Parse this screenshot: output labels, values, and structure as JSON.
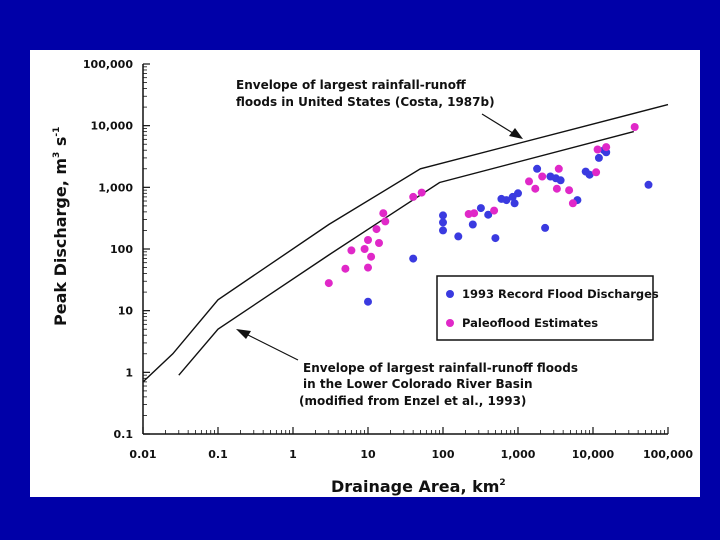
{
  "chart_data": {
    "type": "scatter",
    "x_scale": "log",
    "y_scale": "log",
    "xlim": [
      0.01,
      100000
    ],
    "ylim": [
      0.1,
      100000
    ],
    "xlabel": "Drainage Area, km",
    "xlabel_superscript": "2",
    "ylabel": "Peak Discharge, m",
    "ylabel_superscript_1": "3",
    "ylabel_unit_s": " s",
    "ylabel_superscript_2": "-1",
    "x_ticks": [
      {
        "value": 0.01,
        "label": "0.01"
      },
      {
        "value": 0.1,
        "label": "0.1"
      },
      {
        "value": 1,
        "label": "1"
      },
      {
        "value": 10,
        "label": "10"
      },
      {
        "value": 100,
        "label": "100"
      },
      {
        "value": 1000,
        "label": "1,000"
      },
      {
        "value": 10000,
        "label": "10,000"
      },
      {
        "value": 100000,
        "label": "100,000"
      }
    ],
    "y_ticks": [
      {
        "value": 0.1,
        "label": "0.1"
      },
      {
        "value": 1,
        "label": "1"
      },
      {
        "value": 10,
        "label": "10"
      },
      {
        "value": 100,
        "label": "100"
      },
      {
        "value": 1000,
        "label": "1,000"
      },
      {
        "value": 10000,
        "label": "10,000"
      },
      {
        "value": 100000,
        "label": "100,000"
      }
    ],
    "grid": false,
    "legend_position": "bottom-right",
    "series": [
      {
        "name": "1993 Record Flood Discharges",
        "color": "#3a3ae0",
        "marker": "circle",
        "points": [
          [
            10,
            14
          ],
          [
            40,
            70
          ],
          [
            100,
            350
          ],
          [
            100,
            270
          ],
          [
            100,
            200
          ],
          [
            160,
            160
          ],
          [
            250,
            250
          ],
          [
            320,
            460
          ],
          [
            400,
            360
          ],
          [
            500,
            150
          ],
          [
            600,
            650
          ],
          [
            700,
            620
          ],
          [
            850,
            700
          ],
          [
            900,
            550
          ],
          [
            1000,
            800
          ],
          [
            1800,
            2000
          ],
          [
            2300,
            220
          ],
          [
            2700,
            1500
          ],
          [
            3200,
            1400
          ],
          [
            3700,
            1300
          ],
          [
            6200,
            620
          ],
          [
            8000,
            1800
          ],
          [
            9000,
            1600
          ],
          [
            12000,
            3000
          ],
          [
            14000,
            4000
          ],
          [
            15000,
            3700
          ],
          [
            55000,
            1100
          ]
        ]
      },
      {
        "name": "Paleoflood Estimates",
        "color": "#e028c8",
        "marker": "circle",
        "points": [
          [
            3,
            28
          ],
          [
            5,
            48
          ],
          [
            6,
            95
          ],
          [
            9,
            100
          ],
          [
            10,
            50
          ],
          [
            10,
            140
          ],
          [
            11,
            75
          ],
          [
            13,
            210
          ],
          [
            14,
            125
          ],
          [
            16,
            380
          ],
          [
            17,
            280
          ],
          [
            40,
            700
          ],
          [
            52,
            820
          ],
          [
            220,
            370
          ],
          [
            260,
            380
          ],
          [
            480,
            420
          ],
          [
            1400,
            1250
          ],
          [
            1700,
            950
          ],
          [
            2100,
            1500
          ],
          [
            3300,
            950
          ],
          [
            3500,
            2000
          ],
          [
            4800,
            900
          ],
          [
            5400,
            550
          ],
          [
            11000,
            1750
          ],
          [
            11500,
            4100
          ],
          [
            15000,
            4500
          ],
          [
            36000,
            9500
          ]
        ]
      }
    ],
    "envelopes": [
      {
        "name": "us_envelope",
        "points": [
          [
            0.01,
            0.7
          ],
          [
            0.025,
            2
          ],
          [
            0.1,
            15
          ],
          [
            3,
            250
          ],
          [
            50,
            2000
          ],
          [
            100000,
            22000
          ]
        ]
      },
      {
        "name": "colorado_envelope",
        "points": [
          [
            0.03,
            0.9
          ],
          [
            0.1,
            5
          ],
          [
            3,
            80
          ],
          [
            90,
            1200
          ],
          [
            35000,
            8000
          ]
        ]
      }
    ],
    "annotations": {
      "us_envelope": [
        "Envelope of largest rainfall-runoff",
        "floods in United States  (Costa, 1987b)"
      ],
      "colorado_envelope": [
        "Envelope of largest rainfall-runoff floods",
        "in the Lower Colorado River Basin",
        "(modified from Enzel et al., 1993)"
      ]
    }
  },
  "colors": {
    "background": "#0000a8",
    "panel": "#ffffff",
    "ink": "#111111"
  }
}
